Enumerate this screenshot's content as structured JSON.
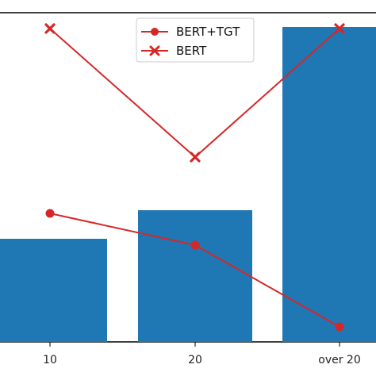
{
  "chart_data": {
    "type": "bar",
    "categories": [
      "10",
      "20",
      "over 20"
    ],
    "bar_series": {
      "values": [
        130,
        166,
        397
      ],
      "color": "#1f77b4"
    },
    "line_series": [
      {
        "name": "BERT+TGT",
        "marker": "circle",
        "color": "#d62728",
        "values": [
          162,
          122,
          19
        ]
      },
      {
        "name": "BERT",
        "marker": "x",
        "color": "#d62728",
        "values": [
          395,
          233,
          395
        ]
      }
    ],
    "ylim": [
      0,
      415
    ],
    "legend_location": "top-center",
    "grid": false
  }
}
